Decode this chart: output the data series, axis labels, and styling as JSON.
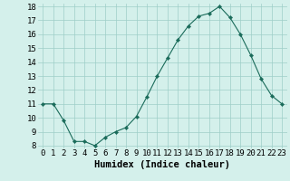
{
  "x": [
    0,
    1,
    2,
    3,
    4,
    5,
    6,
    7,
    8,
    9,
    10,
    11,
    12,
    13,
    14,
    15,
    16,
    17,
    18,
    19,
    20,
    21,
    22,
    23
  ],
  "y": [
    11,
    11,
    9.8,
    8.3,
    8.3,
    8.0,
    8.6,
    9.0,
    9.3,
    10.1,
    11.5,
    13.0,
    14.3,
    15.6,
    16.6,
    17.3,
    17.5,
    18.0,
    17.2,
    16.0,
    14.5,
    12.8,
    11.6,
    11.0
  ],
  "xlabel": "Humidex (Indice chaleur)",
  "ylim": [
    8,
    18
  ],
  "xlim": [
    -0.5,
    23.5
  ],
  "yticks": [
    8,
    9,
    10,
    11,
    12,
    13,
    14,
    15,
    16,
    17,
    18
  ],
  "xticks": [
    0,
    1,
    2,
    3,
    4,
    5,
    6,
    7,
    8,
    9,
    10,
    11,
    12,
    13,
    14,
    15,
    16,
    17,
    18,
    19,
    20,
    21,
    22,
    23
  ],
  "line_color": "#1a6b5a",
  "marker_color": "#1a6b5a",
  "bg_color": "#d4f0eb",
  "grid_color": "#9ecec8",
  "xlabel_fontsize": 7.5,
  "tick_fontsize": 6.5
}
